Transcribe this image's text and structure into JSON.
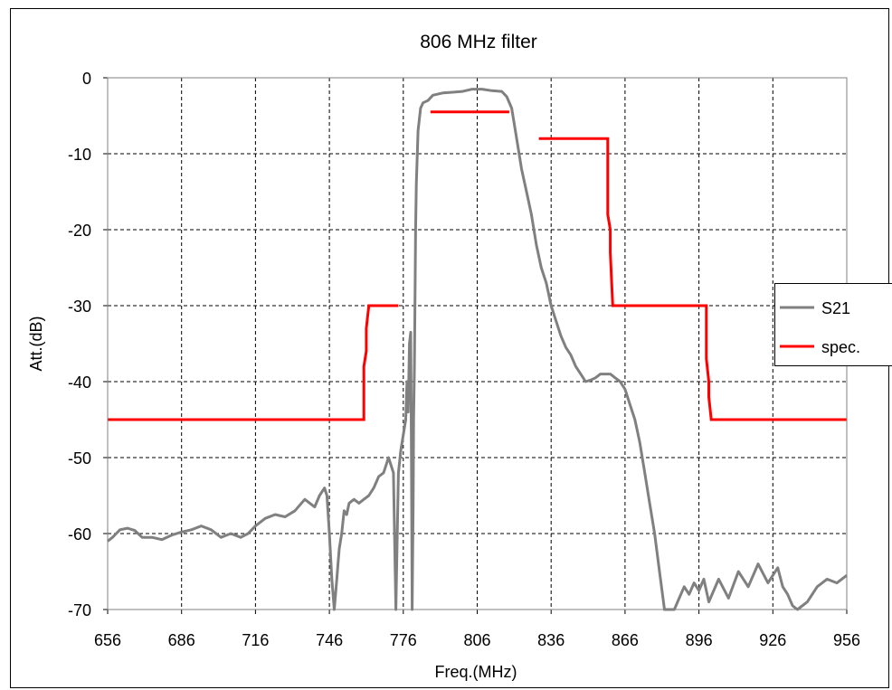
{
  "chart_data": {
    "type": "line",
    "title": "806 MHz filter",
    "xlabel": "Freq.(MHz)",
    "ylabel": "Att.(dB)",
    "xlim": [
      656,
      956
    ],
    "ylim": [
      -70,
      0
    ],
    "xticks": [
      656,
      686,
      716,
      746,
      776,
      806,
      836,
      866,
      896,
      926,
      956
    ],
    "yticks": [
      0,
      -10,
      -20,
      -30,
      -40,
      -50,
      -60,
      -70
    ],
    "grid": true,
    "legend_position": "right",
    "series": [
      {
        "name": "S21",
        "color": "#808080",
        "x": [
          656,
          658,
          661,
          664,
          667,
          670,
          674,
          678,
          682,
          686,
          690,
          694,
          698,
          702,
          706,
          710,
          713,
          716,
          720,
          724,
          728,
          732,
          736,
          740,
          742,
          744,
          745,
          746,
          747,
          748,
          749,
          749.5,
          750,
          751,
          752,
          753,
          754,
          756,
          758,
          760,
          762,
          764,
          766,
          768,
          770,
          772,
          773,
          774,
          775,
          776,
          777,
          777.5,
          778,
          778.5,
          779,
          779.3,
          779.6,
          780,
          780.2,
          780.5,
          781,
          781.3,
          782,
          783,
          784,
          786,
          788,
          792,
          796,
          800,
          804,
          808,
          812,
          816,
          818,
          820,
          822,
          824,
          826,
          828,
          830,
          832,
          834,
          836,
          838,
          840,
          842,
          844,
          846,
          848,
          850,
          852,
          854,
          856,
          858,
          860,
          862,
          864,
          866,
          868,
          870,
          872,
          874,
          876,
          878,
          880,
          882,
          884,
          886,
          888,
          890,
          892,
          894,
          896,
          898,
          900,
          904,
          908,
          912,
          916,
          920,
          924,
          928,
          930,
          932,
          934,
          936,
          940,
          944,
          948,
          952,
          956
        ],
        "y": [
          -61,
          -60.5,
          -59.5,
          -59.3,
          -59.6,
          -60.5,
          -60.5,
          -60.8,
          -60.2,
          -59.8,
          -59.5,
          -59.0,
          -59.5,
          -60.5,
          -60.0,
          -60.5,
          -60.0,
          -59.0,
          -58.0,
          -57.5,
          -57.8,
          -57.0,
          -55.5,
          -56.5,
          -55.0,
          -54.0,
          -55.0,
          -60.0,
          -66.0,
          -70.0,
          -66.0,
          -64.0,
          -62.0,
          -60.0,
          -57.0,
          -57.5,
          -56.0,
          -55.5,
          -56.0,
          -55.5,
          -55.0,
          -54.0,
          -52.5,
          -52.0,
          -50.0,
          -52.0,
          -70.0,
          -52.0,
          -49.0,
          -47.0,
          -45.0,
          -40.0,
          -44.0,
          -35.0,
          -33.5,
          -50.0,
          -70.0,
          -56.0,
          -45.0,
          -38.0,
          -20.0,
          -14.0,
          -7.0,
          -4.0,
          -3.3,
          -3.0,
          -2.3,
          -2.0,
          -1.9,
          -1.8,
          -1.5,
          -1.5,
          -1.7,
          -1.8,
          -2.5,
          -4.0,
          -8.0,
          -12.0,
          -15.0,
          -18.0,
          -22.0,
          -25.0,
          -27.0,
          -30.0,
          -32.0,
          -34.0,
          -35.5,
          -36.5,
          -38.0,
          -39.0,
          -40.0,
          -39.8,
          -39.5,
          -39.0,
          -39.0,
          -39.0,
          -39.5,
          -40.0,
          -41.0,
          -43.0,
          -45.0,
          -48.0,
          -52.0,
          -56.0,
          -60.0,
          -65.0,
          -70.0,
          -70.0,
          -70.0,
          -68.5,
          -67.0,
          -68.0,
          -66.5,
          -67.5,
          -66.0,
          -69.0,
          -66.0,
          -68.5,
          -65.0,
          -67.0,
          -64.0,
          -66.5,
          -64.5,
          -67.0,
          -68.0,
          -69.5,
          -70.0,
          -69.0,
          -67.0,
          -66.0,
          -66.5,
          -65.5
        ]
      },
      {
        "name": "spec.",
        "color": "#ff0000",
        "segments": [
          {
            "x": [
              656,
              760,
              760,
              761,
              761,
              762,
              774
            ],
            "y": [
              -45,
              -45,
              -38,
              -36,
              -33,
              -30,
              -30
            ]
          },
          {
            "x": [
              787,
              819
            ],
            "y": [
              -4.5,
              -4.5
            ]
          },
          {
            "x": [
              831,
              859,
              859,
              860,
              860,
              861,
              956
            ],
            "y": [
              -8,
              -8,
              -18,
              -20,
              -23,
              -30,
              -30
            ]
          },
          {
            "x": [
              899
            ],
            "y": [
              -30
            ]
          }
        ],
        "segments_full": [
          {
            "x": [
              656,
              760,
              760,
              761,
              761,
              762,
              774
            ],
            "y": [
              -45,
              -45,
              -38,
              -36,
              -33,
              -30,
              -30
            ]
          },
          {
            "x": [
              787,
              819
            ],
            "y": [
              -4.5,
              -4.5
            ]
          },
          {
            "x": [
              831,
              859,
              859,
              860,
              860,
              861,
              899,
              899,
              900,
              900,
              901,
              956
            ],
            "y": [
              -8,
              -8,
              -18,
              -20,
              -23,
              -30,
              -30,
              -37,
              -40,
              -42,
              -45,
              -45
            ]
          }
        ]
      }
    ],
    "legend": [
      "S21",
      "spec."
    ]
  }
}
